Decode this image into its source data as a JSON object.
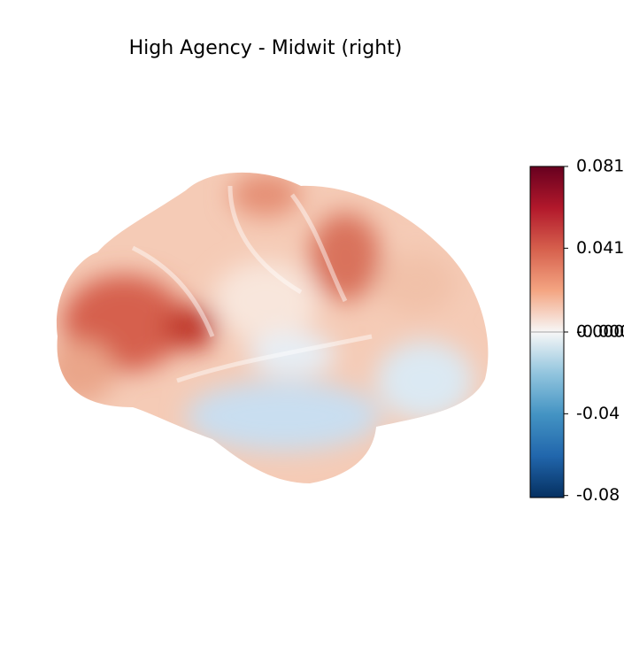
{
  "chart_data": {
    "type": "surface",
    "title": "High Agency - Midwit (right)",
    "clim": [
      -0.081,
      0.081
    ],
    "cticks": [
      0.081,
      0.041,
      {
        "value": 0,
        "label": "0.000"
      },
      {
        "value": 0,
        "label": "-0.000"
      },
      -0.04,
      -0.08
    ]
  }
}
